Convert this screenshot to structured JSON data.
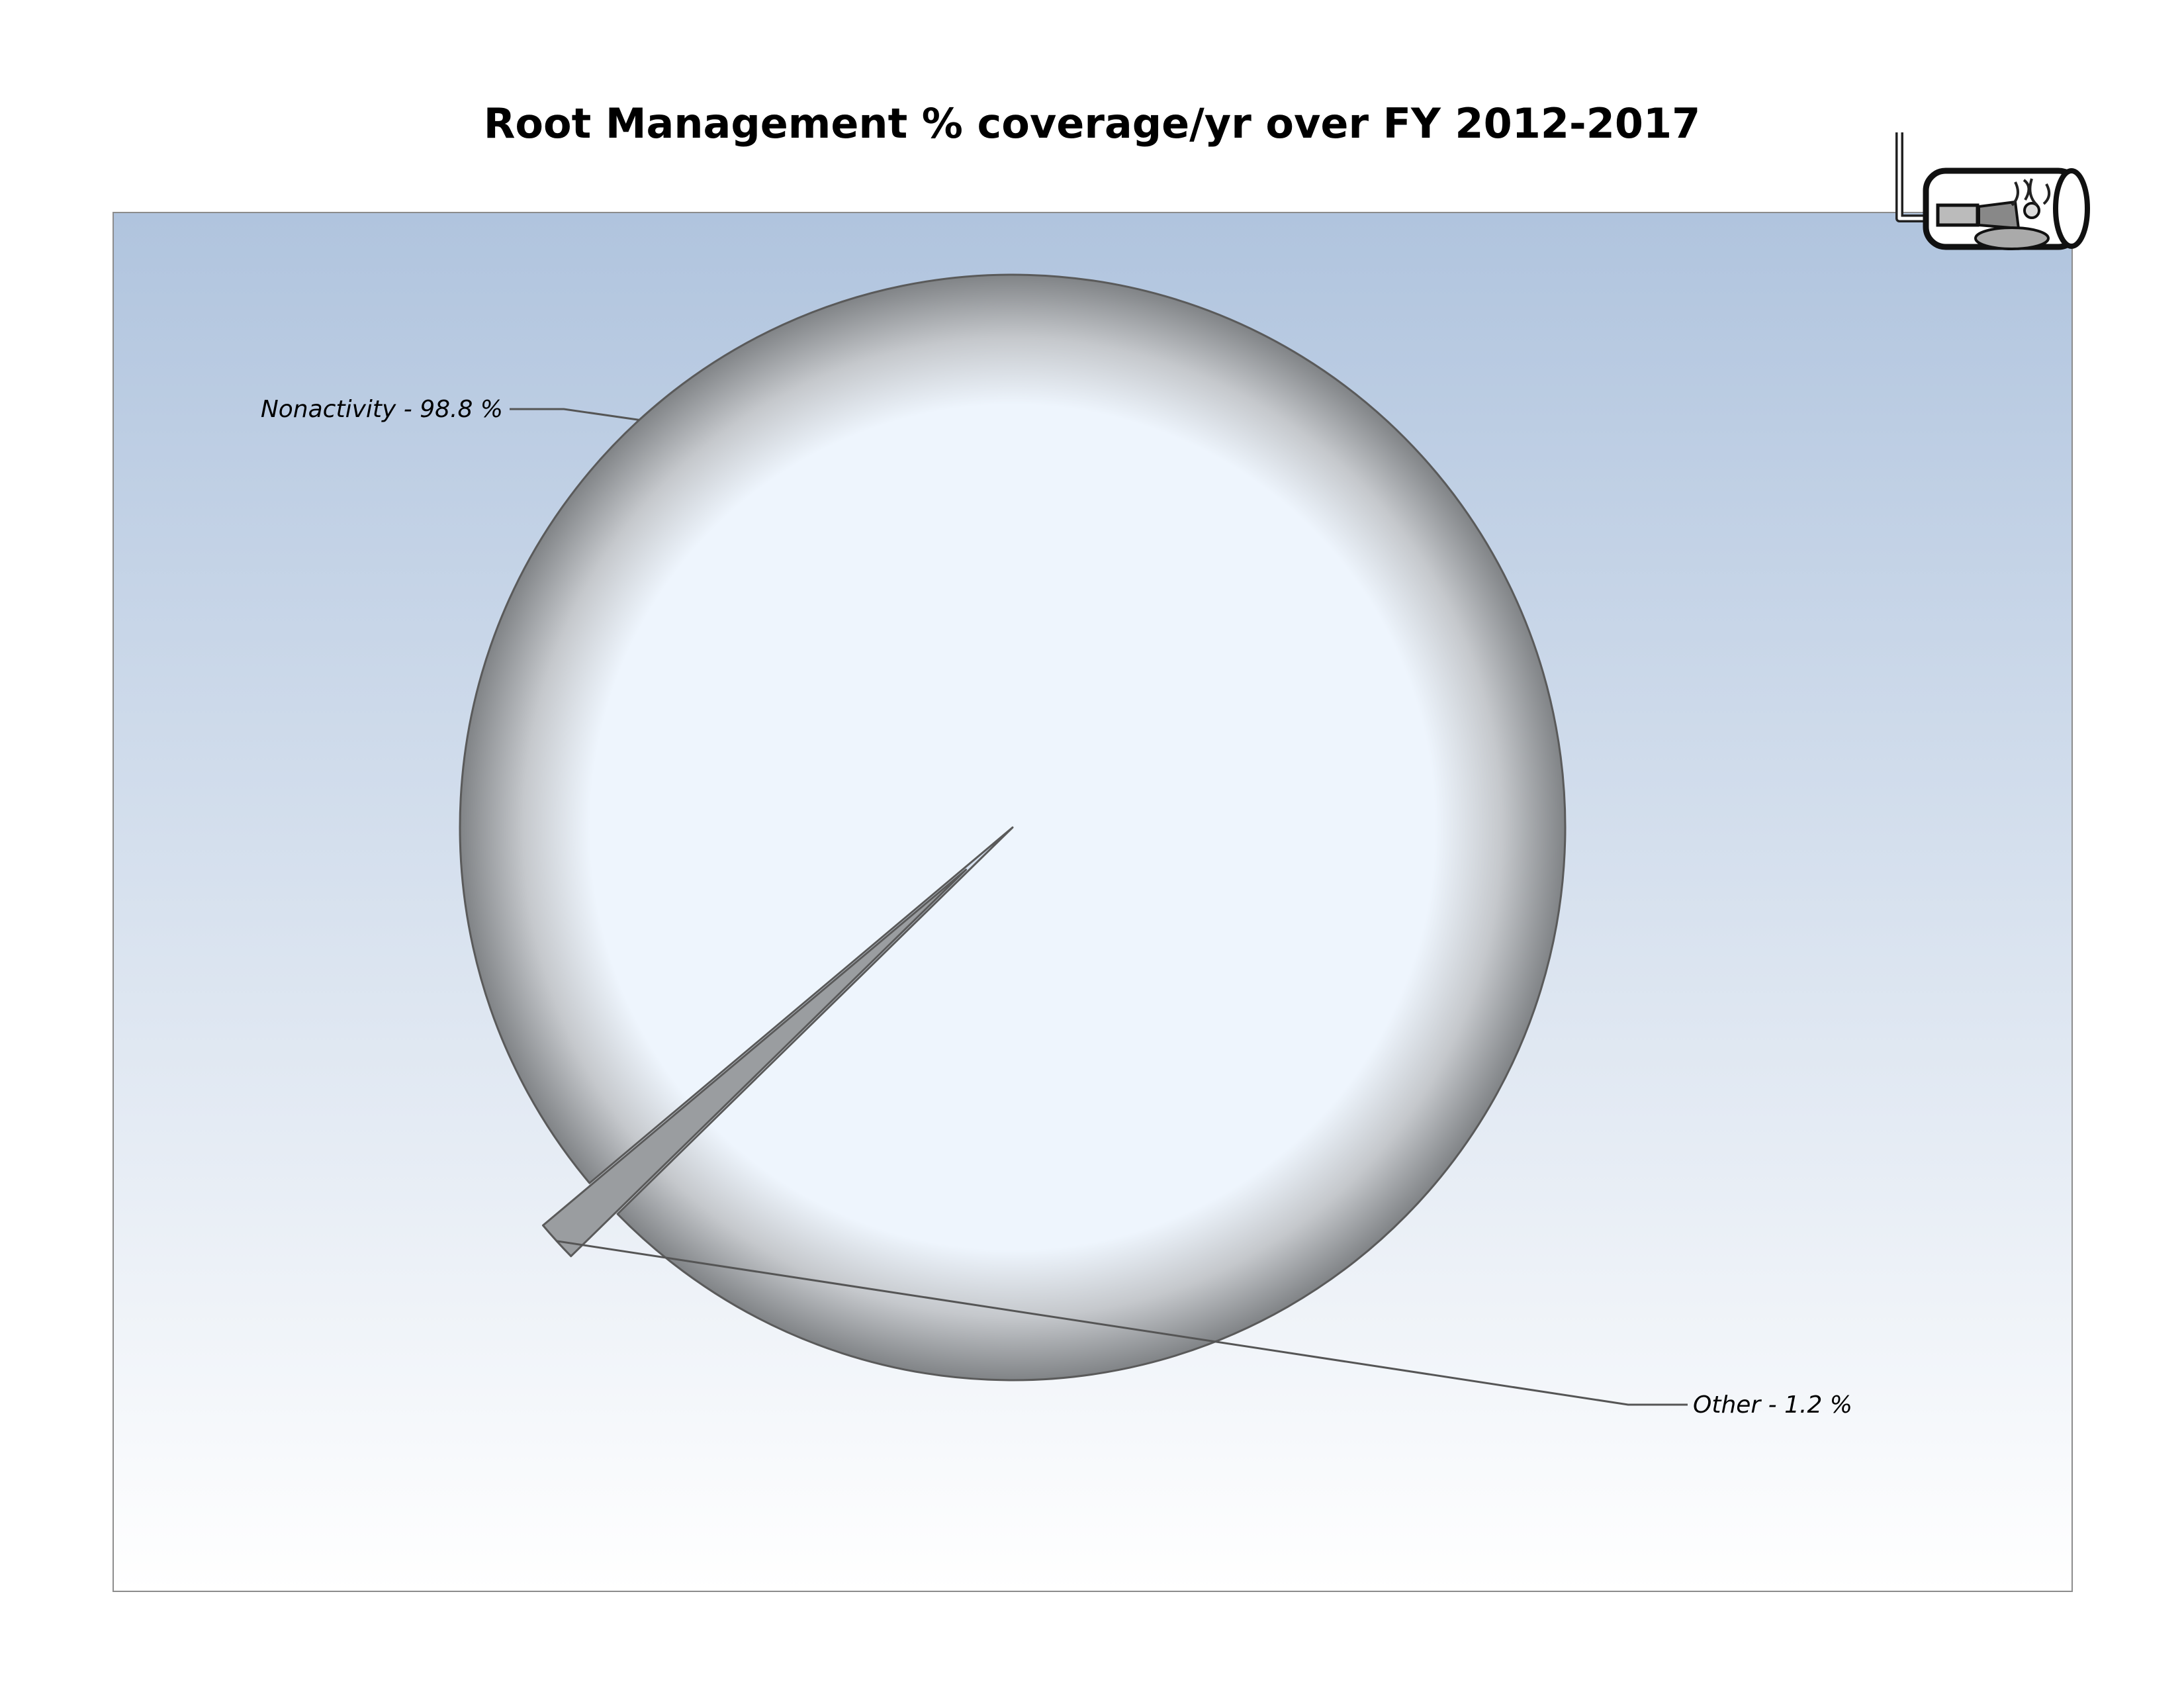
{
  "chart_data": {
    "type": "pie",
    "title": "Root Management % coverage/yr over FY 2012-2017",
    "slices": [
      {
        "name": "Nonactivity",
        "value": 98.8,
        "label": "Nonactivity - 98.8 %"
      },
      {
        "name": "Other",
        "value": 1.2,
        "label": "Other - 1.2 %"
      }
    ],
    "exploded_slice": "Other",
    "data_label_format": "category - percent",
    "legend": "none",
    "colors": {
      "plot_top": "#b0c4de",
      "plot_bottom": "#ffffff",
      "slice_light": "#eef5fd",
      "slice_dark": "#7d8083",
      "border": "#5a5a5a"
    },
    "logo_icon": "pipe-with-roots-icon"
  }
}
